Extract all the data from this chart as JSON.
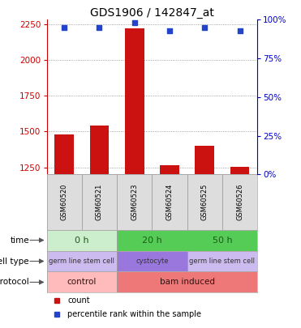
{
  "title": "GDS1906 / 142847_at",
  "samples": [
    "GSM60520",
    "GSM60521",
    "GSM60523",
    "GSM60524",
    "GSM60525",
    "GSM60526"
  ],
  "counts": [
    1480,
    1540,
    2220,
    1265,
    1400,
    1255
  ],
  "percentile_ranks": [
    95,
    95,
    98,
    93,
    95,
    93
  ],
  "ylim_left": [
    1200,
    2280
  ],
  "yticks_left": [
    1250,
    1500,
    1750,
    2000,
    2250
  ],
  "ylim_right": [
    0,
    100
  ],
  "yticks_right": [
    0,
    25,
    50,
    75,
    100
  ],
  "bar_color": "#cc1111",
  "dot_color": "#2244cc",
  "bar_width": 0.55,
  "grid_color": "#888888",
  "time_labels": [
    "0 h",
    "20 h",
    "50 h"
  ],
  "time_colors": [
    "#cceecc",
    "#55cc55",
    "#55cc55"
  ],
  "cell_type_labels": [
    "germ line stem cell",
    "cystocyte",
    "germ line stem cell"
  ],
  "cell_type_colors": [
    "#ccbbee",
    "#9977dd",
    "#ccbbee"
  ],
  "protocol_labels": [
    "control",
    "bam induced"
  ],
  "protocol_colors": [
    "#ffbbbb",
    "#ee7777"
  ],
  "row_labels": [
    "time",
    "cell type",
    "protocol"
  ],
  "legend_items": [
    {
      "color": "#cc1111",
      "label": "count"
    },
    {
      "color": "#2244cc",
      "label": "percentile rank within the sample"
    }
  ],
  "left_color": "#cc0000",
  "right_color": "#0000cc",
  "title_fontsize": 10,
  "tick_fontsize": 7.5,
  "label_fontsize": 7.5,
  "row_fontsize": 7,
  "name_fontsize": 6
}
